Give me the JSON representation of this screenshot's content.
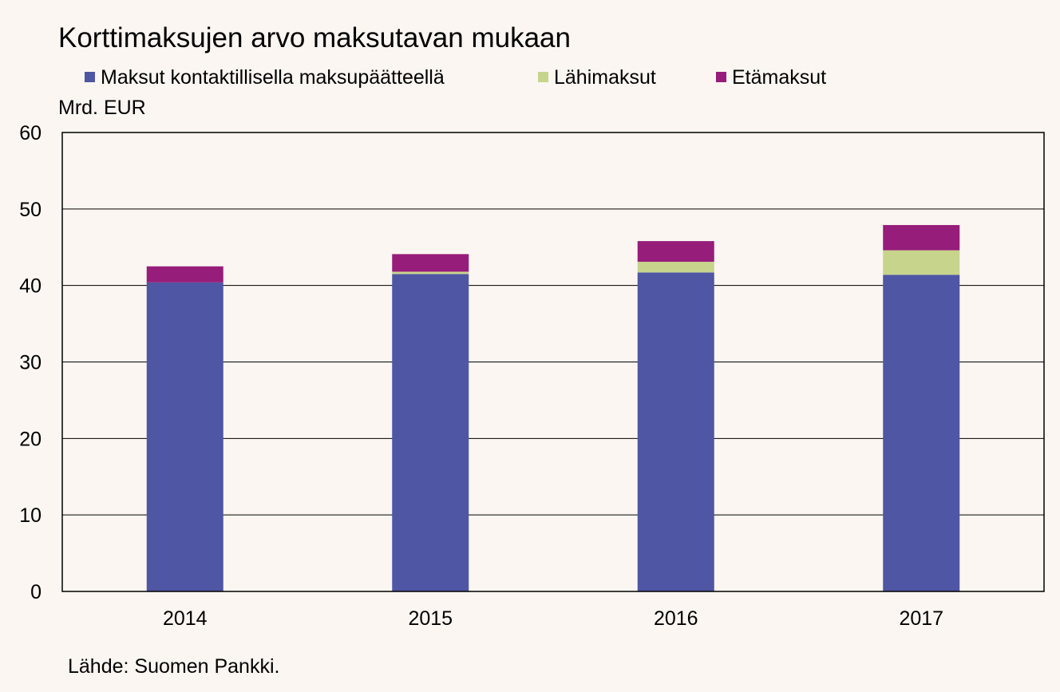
{
  "chart_data": {
    "type": "bar",
    "stacked": true,
    "title": "Korttimaksujen arvo maksutavan mukaan",
    "ylabel": "Mrd. EUR",
    "source": "Lähde: Suomen Pankki.",
    "categories": [
      "2014",
      "2015",
      "2016",
      "2017"
    ],
    "ylim": [
      0,
      60
    ],
    "yticks": [
      "0",
      "10",
      "20",
      "30",
      "40",
      "50",
      "60"
    ],
    "grid": true,
    "legend_position": "top",
    "series": [
      {
        "name": "Maksut kontaktillisella maksupäätteellä",
        "color": "#4f56a3",
        "values": [
          40.4,
          41.5,
          41.7,
          41.4
        ]
      },
      {
        "name": "Lähimaksut",
        "color": "#c7d48c",
        "values": [
          0.0,
          0.3,
          1.4,
          3.2
        ]
      },
      {
        "name": "Etämaksut",
        "color": "#961d7a",
        "values": [
          2.1,
          2.3,
          2.7,
          3.3
        ]
      }
    ]
  }
}
